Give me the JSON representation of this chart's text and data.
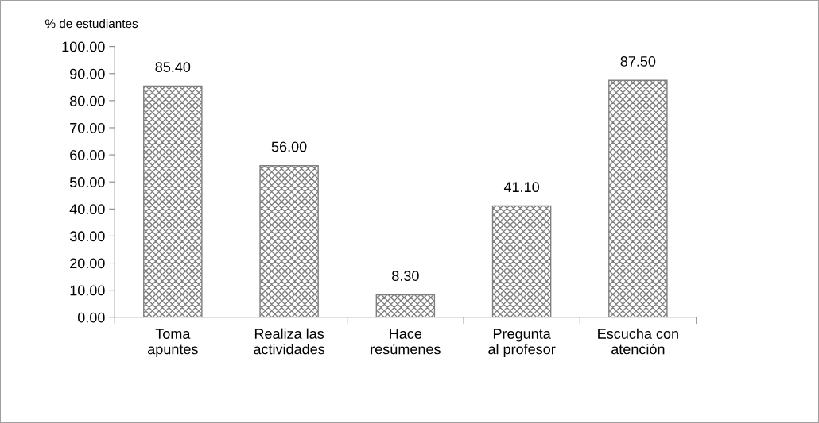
{
  "chart_data": {
    "type": "bar",
    "ylabel": "% de estudiantes",
    "categories": [
      "Toma apuntes",
      "Realiza las actividades",
      "Hace resúmenes",
      "Pregunta al profesor",
      "Escucha con atención"
    ],
    "values": [
      85.4,
      56.0,
      8.3,
      41.1,
      87.5
    ],
    "value_labels": [
      "85.40",
      "56.00",
      "8.30",
      "41.10",
      "87.50"
    ],
    "color": "#7f7f7f",
    "ylim": [
      0,
      100
    ],
    "yticks": [
      {
        "value": 0,
        "label": "0.00"
      },
      {
        "value": 10,
        "label": "10.00"
      },
      {
        "value": 20,
        "label": "20.00"
      },
      {
        "value": 30,
        "label": "30.00"
      },
      {
        "value": 40,
        "label": "40.00"
      },
      {
        "value": 50,
        "label": "50.00"
      },
      {
        "value": 60,
        "label": "60.00"
      },
      {
        "value": 70,
        "label": "70.00"
      },
      {
        "value": 80,
        "label": "80.00"
      },
      {
        "value": 90,
        "label": "90.00"
      },
      {
        "value": 100,
        "label": "100.00"
      }
    ],
    "grid": false,
    "legend": false
  }
}
